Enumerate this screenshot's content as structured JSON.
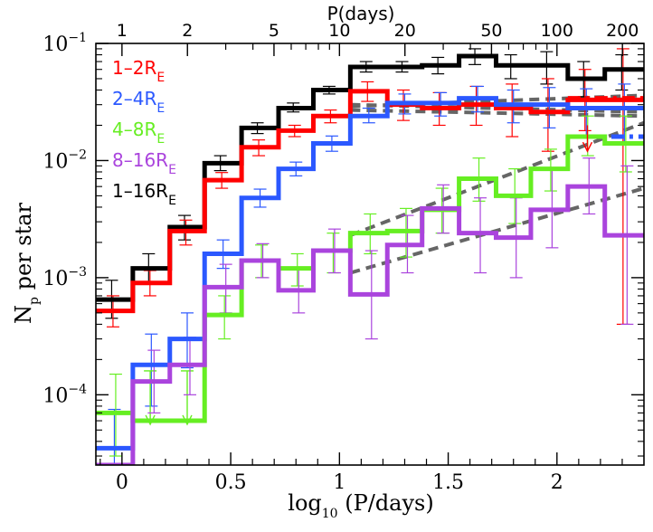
{
  "chart_data": {
    "type": "line",
    "subtype": "step-histogram",
    "xlabel": "log10 (P/days)",
    "xlabel_parts": {
      "base": "log",
      "sub": "10",
      "rest": " (P/days)"
    },
    "ylabel": "Np per star",
    "ylabel_parts": {
      "main": "N",
      "sub": "p",
      "rest": " per star"
    },
    "top_xlabel": "P(days)",
    "xlim": [
      -0.12,
      2.4
    ],
    "ylim_log10": [
      -4.6,
      -1
    ],
    "yscale": "log",
    "x_ticks": [
      {
        "value": 0,
        "label": "0"
      },
      {
        "value": 0.5,
        "label": "0.5"
      },
      {
        "value": 1,
        "label": "1"
      },
      {
        "value": 1.5,
        "label": "1.5"
      },
      {
        "value": 2,
        "label": "2"
      }
    ],
    "y_ticks": [
      {
        "value": -4,
        "base": "10",
        "exp": "−4"
      },
      {
        "value": -3,
        "base": "10",
        "exp": "−3"
      },
      {
        "value": -2,
        "base": "10",
        "exp": "−2"
      },
      {
        "value": -1,
        "base": "10",
        "exp": "−1"
      }
    ],
    "top_ticks": [
      {
        "period": 1,
        "label": "1"
      },
      {
        "period": 2,
        "label": "2"
      },
      {
        "period": 5,
        "label": "5"
      },
      {
        "period": 10,
        "label": "10"
      },
      {
        "period": 20,
        "label": "20"
      },
      {
        "period": 50,
        "label": "50"
      },
      {
        "period": 100,
        "label": "100"
      },
      {
        "period": 200,
        "label": "200"
      }
    ],
    "bin_edges": [
      -0.12,
      0.05,
      0.22,
      0.38,
      0.55,
      0.72,
      0.88,
      1.05,
      1.22,
      1.38,
      1.55,
      1.72,
      1.88,
      2.05,
      2.22,
      2.4
    ],
    "series": [
      {
        "name": "1–16RE",
        "label_main": "1–16R",
        "label_sub": "E",
        "color": "#000000",
        "values": [
          0.00065,
          0.0012,
          0.0027,
          0.0095,
          0.019,
          0.028,
          0.04,
          0.063,
          0.063,
          0.065,
          0.078,
          0.065,
          0.065,
          0.05,
          0.06
        ],
        "errors": [
          [
            0.00045,
            0.00095
          ],
          [
            0.0009,
            0.0016
          ],
          [
            0.0021,
            0.0034
          ],
          [
            0.0082,
            0.011
          ],
          [
            0.017,
            0.021
          ],
          [
            0.026,
            0.031
          ],
          [
            0.037,
            0.043
          ],
          [
            0.057,
            0.07
          ],
          [
            0.057,
            0.07
          ],
          [
            0.055,
            0.076
          ],
          [
            0.066,
            0.09
          ],
          [
            0.05,
            0.08
          ],
          [
            0.045,
            0.085
          ],
          [
            0.035,
            0.07
          ],
          [
            0.04,
            0.08
          ]
        ]
      },
      {
        "name": "1–2RE",
        "label_main": "1–2R",
        "label_sub": "E",
        "color": "#ff0000",
        "values": [
          0.00052,
          0.0009,
          0.0025,
          0.0068,
          0.013,
          0.018,
          0.024,
          0.039,
          0.03,
          0.028,
          0.03,
          0.028,
          0.026,
          0.033,
          0.033
        ],
        "errors": [
          [
            0.00038,
            0.0007
          ],
          [
            0.0007,
            0.00115
          ],
          [
            0.0019,
            0.0031
          ],
          [
            0.0058,
            0.0079
          ],
          [
            0.011,
            0.015
          ],
          [
            0.016,
            0.02
          ],
          [
            0.021,
            0.027
          ],
          [
            0.032,
            0.047
          ],
          [
            0.022,
            0.04
          ],
          [
            0.02,
            0.038
          ],
          [
            0.02,
            0.043
          ],
          [
            0.016,
            0.045
          ],
          [
            0.012,
            0.05
          ],
          [
            0.018,
            0.06
          ],
          [
            0.0004,
            0.09
          ]
        ]
      },
      {
        "name": "2–4RE",
        "label_main": "2–4R",
        "label_sub": "E",
        "color": "#2b58ff",
        "values": [
          3.5e-05,
          0.00018,
          0.0003,
          0.0016,
          0.0048,
          0.0085,
          0.014,
          0.024,
          0.031,
          0.031,
          0.034,
          0.03,
          0.03,
          0.028,
          0.028
        ],
        "errors": [
          [
            1.5e-05,
            7.5e-05
          ],
          [
            8e-05,
            0.00033
          ],
          [
            0.00017,
            0.0005
          ],
          [
            0.0012,
            0.0021
          ],
          [
            0.004,
            0.0057
          ],
          [
            0.0074,
            0.0097
          ],
          [
            0.012,
            0.0162
          ],
          [
            0.021,
            0.028
          ],
          [
            0.025,
            0.037
          ],
          [
            0.024,
            0.038
          ],
          [
            0.026,
            0.043
          ],
          [
            0.021,
            0.04
          ],
          [
            0.019,
            0.042
          ],
          [
            0.016,
            0.041
          ],
          [
            0.014,
            0.045
          ]
        ]
      },
      {
        "name": "4–8RE",
        "label_main": "4–8R",
        "label_sub": "E",
        "color": "#66ee22",
        "values": [
          7e-05,
          6e-05,
          6e-05,
          0.00048,
          0.0014,
          0.0012,
          0.0017,
          0.0024,
          0.0025,
          0.0038,
          0.007,
          0.005,
          0.0085,
          0.016,
          0.014
        ],
        "errors": [
          [
            3e-05,
            0.00015
          ],
          null,
          null,
          [
            0.0003,
            0.0007
          ],
          [
            0.001,
            0.0019
          ],
          [
            0.00085,
            0.0016
          ],
          [
            0.0011,
            0.0024
          ],
          [
            0.0016,
            0.0035
          ],
          [
            0.0015,
            0.0039
          ],
          [
            0.0024,
            0.0058
          ],
          [
            0.0045,
            0.0105
          ],
          [
            0.0029,
            0.0085
          ],
          [
            0.0055,
            0.0125
          ],
          [
            0.011,
            0.024
          ],
          [
            0.008,
            0.024
          ]
        ],
        "upper_limits": [
          {
            "x": 0.13,
            "from": 0.00016,
            "to": 5.6e-05
          },
          {
            "x": 0.3,
            "from": 0.00016,
            "to": 5.6e-05
          }
        ]
      },
      {
        "name": "8–16RE",
        "label_main": "8–16R",
        "label_sub": "E",
        "color": "#aa44dd",
        "values": [
          2e-05,
          0.00013,
          0.00018,
          0.00083,
          0.0014,
          0.00078,
          0.0017,
          0.00072,
          0.0019,
          0.0039,
          0.0024,
          0.0022,
          0.0038,
          0.006,
          0.0023
        ],
        "errors": [
          null,
          [
            7e-05,
            0.00024
          ],
          [
            0.0001,
            0.00031
          ],
          [
            0.0005,
            0.0013
          ],
          [
            0.001,
            0.00195
          ],
          [
            0.0005,
            0.0012
          ],
          [
            0.0011,
            0.0026
          ],
          [
            0.0003,
            0.0017
          ],
          [
            0.0011,
            0.0034
          ],
          [
            0.0024,
            0.0062
          ],
          [
            0.0011,
            0.0048
          ],
          [
            0.001,
            0.0048
          ],
          [
            0.0018,
            0.0083
          ],
          [
            0.0035,
            0.0105
          ],
          [
            0.0004,
            0.009
          ]
        ]
      }
    ],
    "dashed_fits": [
      {
        "series": "1–16RE",
        "color": "#666666",
        "log10P": [
          1.05,
          2.4
        ],
        "values": [
          0.029,
          0.036
        ]
      },
      {
        "series": "1–2RE",
        "color": "#666666",
        "log10P": [
          1.05,
          2.4
        ],
        "values": [
          0.03,
          0.026
        ]
      },
      {
        "series": "2–4RE",
        "color": "#666666",
        "log10P": [
          1.05,
          2.4
        ],
        "values": [
          0.027,
          0.024
        ]
      },
      {
        "series": "4–8RE",
        "color": "#666666",
        "log10P": [
          1.05,
          2.4
        ],
        "values": [
          0.0023,
          0.021
        ]
      },
      {
        "series": "8–16RE",
        "color": "#666666",
        "log10P": [
          1.05,
          2.4
        ],
        "values": [
          0.0011,
          0.0058
        ]
      }
    ],
    "extrapolations": [
      {
        "series": "1–2RE",
        "color": "#ff0000",
        "log10P": [
          2.05,
          2.4
        ],
        "values": [
          0.034,
          0.034
        ]
      },
      {
        "series": "2–4RE",
        "color": "#2b58ff",
        "log10P": [
          2.25,
          2.4
        ],
        "values": [
          0.016,
          0.016
        ]
      }
    ],
    "upper_limit_arrow": {
      "series": "1–2RE",
      "color": "#ff0000",
      "x": 2.14,
      "from": 0.02,
      "to": 0.012
    }
  }
}
